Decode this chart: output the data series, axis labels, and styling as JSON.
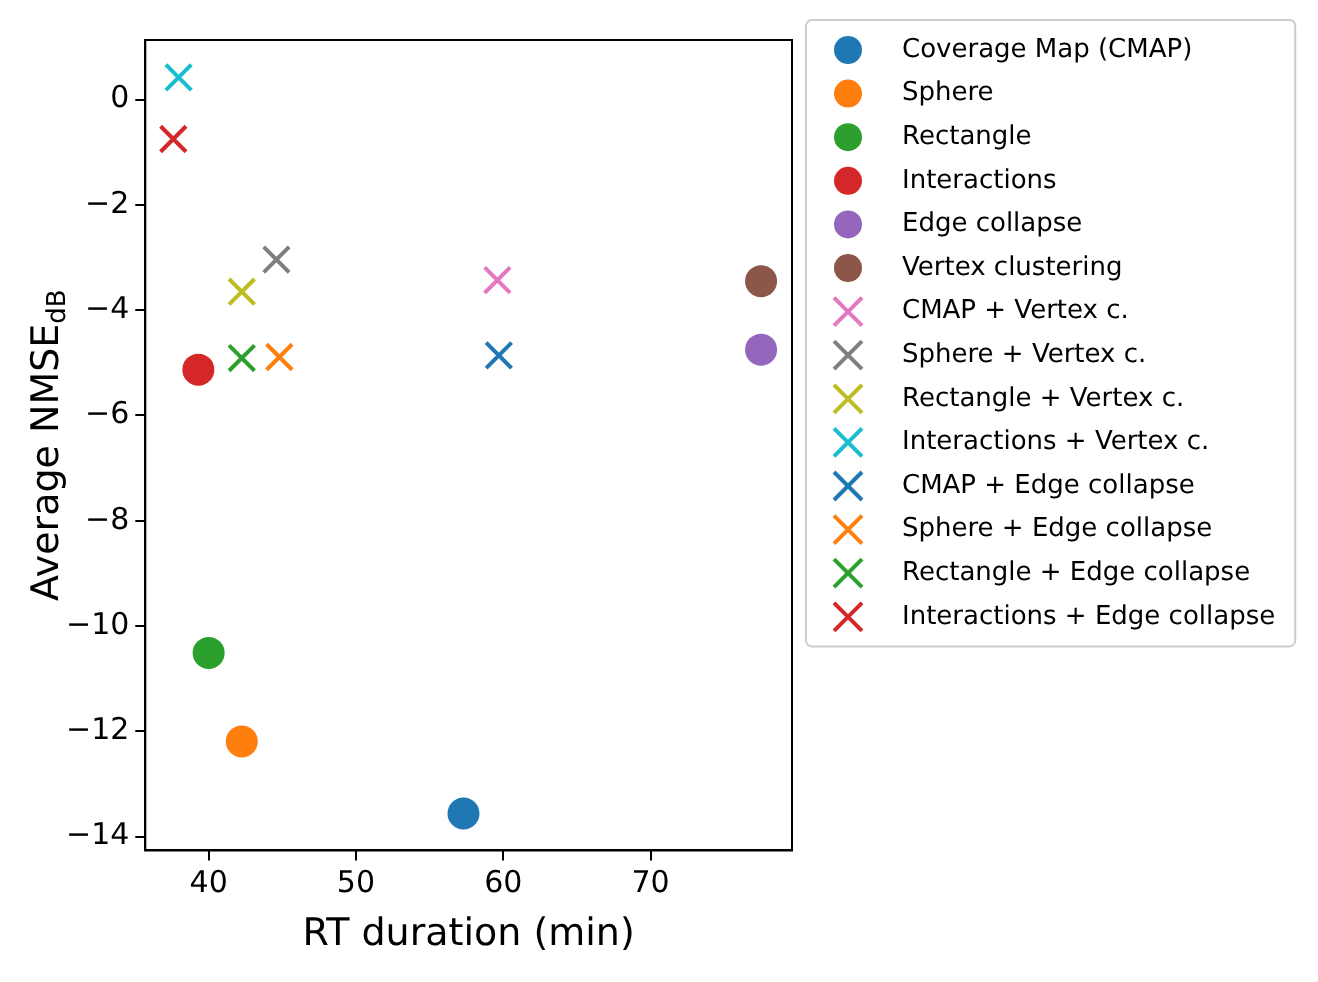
{
  "chart_data": {
    "type": "scatter",
    "xlabel": "RT duration (min)",
    "ylabel": "Average NMSE$_{dB}$",
    "xlim": [
      35.7,
      79.6
    ],
    "ylim": [
      -14.26,
      1.13
    ],
    "xticks": [
      40,
      50,
      60,
      70
    ],
    "yticks": [
      0,
      -2,
      -4,
      -6,
      -8,
      -10,
      -12,
      -14
    ],
    "grid": false,
    "legend": "right",
    "series": [
      {
        "name": "Coverage Map (CMAP)",
        "color": "#1f77b4",
        "marker": "circle",
        "x": [
          57.3
        ],
        "values": [
          -13.56
        ]
      },
      {
        "name": "Sphere",
        "color": "#ff7f0e",
        "marker": "circle",
        "x": [
          42.25
        ],
        "values": [
          -12.19
        ]
      },
      {
        "name": "Rectangle",
        "color": "#2ca02c",
        "marker": "circle",
        "x": [
          40.0
        ],
        "values": [
          -10.51
        ]
      },
      {
        "name": "Interactions",
        "color": "#d62728",
        "marker": "circle",
        "x": [
          39.3
        ],
        "values": [
          -5.13
        ]
      },
      {
        "name": "Edge collapse",
        "color": "#9467bd",
        "marker": "circle",
        "x": [
          77.5
        ],
        "values": [
          -4.75
        ]
      },
      {
        "name": "Vertex clustering",
        "color": "#8c564b",
        "marker": "circle",
        "x": [
          77.5
        ],
        "values": [
          -3.45
        ]
      },
      {
        "name": "CMAP + Vertex c.",
        "color": "#e377c2",
        "marker": "cross",
        "x": [
          59.6
        ],
        "values": [
          -3.43
        ]
      },
      {
        "name": "Sphere + Vertex c.",
        "color": "#7f7f7f",
        "marker": "cross",
        "x": [
          44.6
        ],
        "values": [
          -3.04
        ]
      },
      {
        "name": "Rectangle + Vertex c.",
        "color": "#bcbd22",
        "marker": "cross",
        "x": [
          42.25
        ],
        "values": [
          -3.65
        ]
      },
      {
        "name": "Interactions + Vertex c.",
        "color": "#17becf",
        "marker": "cross",
        "x": [
          37.96
        ],
        "values": [
          0.42
        ]
      },
      {
        "name": "CMAP + Edge collapse",
        "color": "#1f77b4",
        "marker": "cross",
        "x": [
          59.7
        ],
        "values": [
          -4.86
        ]
      },
      {
        "name": "Sphere + Edge collapse",
        "color": "#ff7f0e",
        "marker": "cross",
        "x": [
          44.8
        ],
        "values": [
          -4.89
        ]
      },
      {
        "name": "Rectangle + Edge collapse",
        "color": "#2ca02c",
        "marker": "cross",
        "x": [
          42.25
        ],
        "values": [
          -4.91
        ]
      },
      {
        "name": "Interactions + Edge collapse",
        "color": "#d62728",
        "marker": "cross",
        "x": [
          37.6
        ],
        "values": [
          -0.75
        ]
      }
    ]
  }
}
